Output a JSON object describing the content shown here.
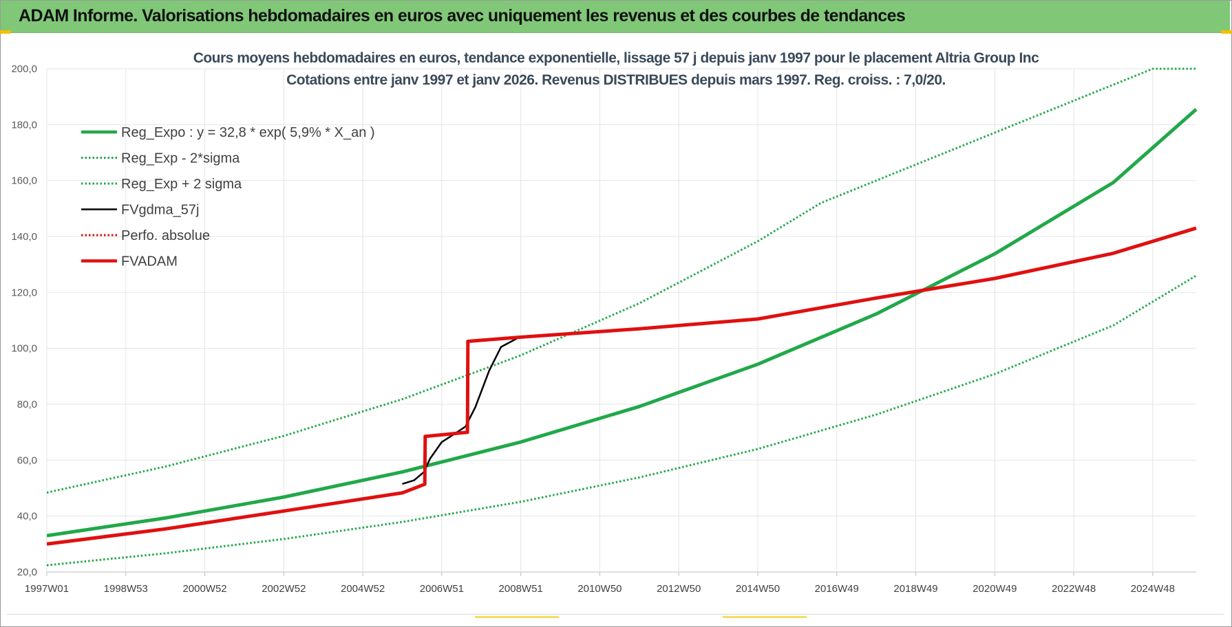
{
  "header": {
    "title": "ADAM Informe. Valorisations hebdomadaires en euros avec uniquement les revenus et des courbes de tendances"
  },
  "chart_data": {
    "type": "line",
    "title": "Cours moyens hebdomadaires en euros, tendance exponentielle, lissage 57 j depuis janv 1997  pour le placement Altria Group Inc",
    "subtitle": "Cotations entre janv 1997 et janv 2026. Revenus DISTRIBUES depuis mars 1997.  Reg. croiss. : 7,0/20.",
    "xlabel": "",
    "ylabel": "",
    "ylim": [
      20,
      200
    ],
    "yticks": [
      "20,0",
      "40,0",
      "60,0",
      "80,0",
      "100,0",
      "120,0",
      "140,0",
      "160,0",
      "180,0",
      "200,0"
    ],
    "xlim": [
      1997.0,
      2026.1
    ],
    "xticks": [
      {
        "x": 1997.0,
        "label": "1997W01"
      },
      {
        "x": 1999.0,
        "label": "1998W53"
      },
      {
        "x": 2001.0,
        "label": "2000W52"
      },
      {
        "x": 2003.0,
        "label": "2002W52"
      },
      {
        "x": 2005.0,
        "label": "2004W52"
      },
      {
        "x": 2007.0,
        "label": "2006W51"
      },
      {
        "x": 2009.0,
        "label": "2008W51"
      },
      {
        "x": 2011.0,
        "label": "2010W50"
      },
      {
        "x": 2013.0,
        "label": "2012W50"
      },
      {
        "x": 2015.0,
        "label": "2014W50"
      },
      {
        "x": 2017.0,
        "label": "2016W49"
      },
      {
        "x": 2019.0,
        "label": "2018W49"
      },
      {
        "x": 2021.0,
        "label": "2020W49"
      },
      {
        "x": 2023.0,
        "label": "2022W48"
      },
      {
        "x": 2025.0,
        "label": "2024W48"
      }
    ],
    "grid": true,
    "legend_position": "top-left",
    "series": [
      {
        "name": "Reg_Expo : y = 32,8 * exp( 5,9% *  X_an )",
        "color": "#22a84a",
        "style": "solid-thick",
        "x": [
          1997.0,
          2000.0,
          2003.0,
          2006.0,
          2009.0,
          2012.0,
          2015.0,
          2018.0,
          2021.0,
          2024.0,
          2026.1
        ],
        "y": [
          33.0,
          39.3,
          46.8,
          55.8,
          66.5,
          79.2,
          94.3,
          112.3,
          133.8,
          159.3,
          185.5
        ]
      },
      {
        "name": "Reg_Exp - 2*sigma",
        "color": "#22a84a",
        "style": "dotted",
        "x": [
          1997.0,
          2000.0,
          2003.0,
          2006.0,
          2009.0,
          2012.0,
          2015.0,
          2018.0,
          2021.0,
          2024.0,
          2026.1
        ],
        "y": [
          22.4,
          26.7,
          31.8,
          37.9,
          45.1,
          53.8,
          64.0,
          76.3,
          90.8,
          108.2,
          126.0
        ]
      },
      {
        "name": "Reg_Exp + 2 sigma",
        "color": "#22a84a",
        "style": "dotted",
        "x": [
          1997.0,
          2000.0,
          2003.0,
          2006.0,
          2009.0,
          2012.0,
          2015.0,
          2016.6,
          2025.0,
          2026.1
        ],
        "y": [
          48.4,
          57.7,
          68.7,
          81.8,
          97.5,
          116.1,
          138.3,
          152.0,
          200.0,
          200.0
        ]
      },
      {
        "name": "FVgdma_57j",
        "color": "#000000",
        "style": "solid",
        "x": [
          2006.0,
          2006.3,
          2006.55,
          2006.7,
          2007.0,
          2007.3,
          2007.6,
          2007.85,
          2008.2,
          2008.5,
          2008.9
        ],
        "y": [
          51.5,
          52.8,
          55.8,
          60.5,
          66.5,
          69.2,
          72.0,
          79.0,
          92.0,
          100.5,
          103.5
        ]
      },
      {
        "name": "Perfo. absolue",
        "color": "#e01010",
        "style": "dotted",
        "x": [],
        "y": []
      },
      {
        "name": "FVADAM",
        "color": "#e01010",
        "style": "solid-thick",
        "x": [
          1997.0,
          2000.0,
          2003.0,
          2006.0,
          2006.57,
          2006.58,
          2007.65,
          2007.66,
          2009.0,
          2012.0,
          2015.0,
          2018.0,
          2021.0,
          2024.0,
          2026.1
        ],
        "y": [
          30.0,
          35.4,
          41.8,
          48.3,
          51.4,
          68.5,
          70.0,
          102.5,
          104.0,
          107.0,
          110.5,
          118.0,
          125.0,
          134.0,
          143.0
        ]
      }
    ]
  }
}
